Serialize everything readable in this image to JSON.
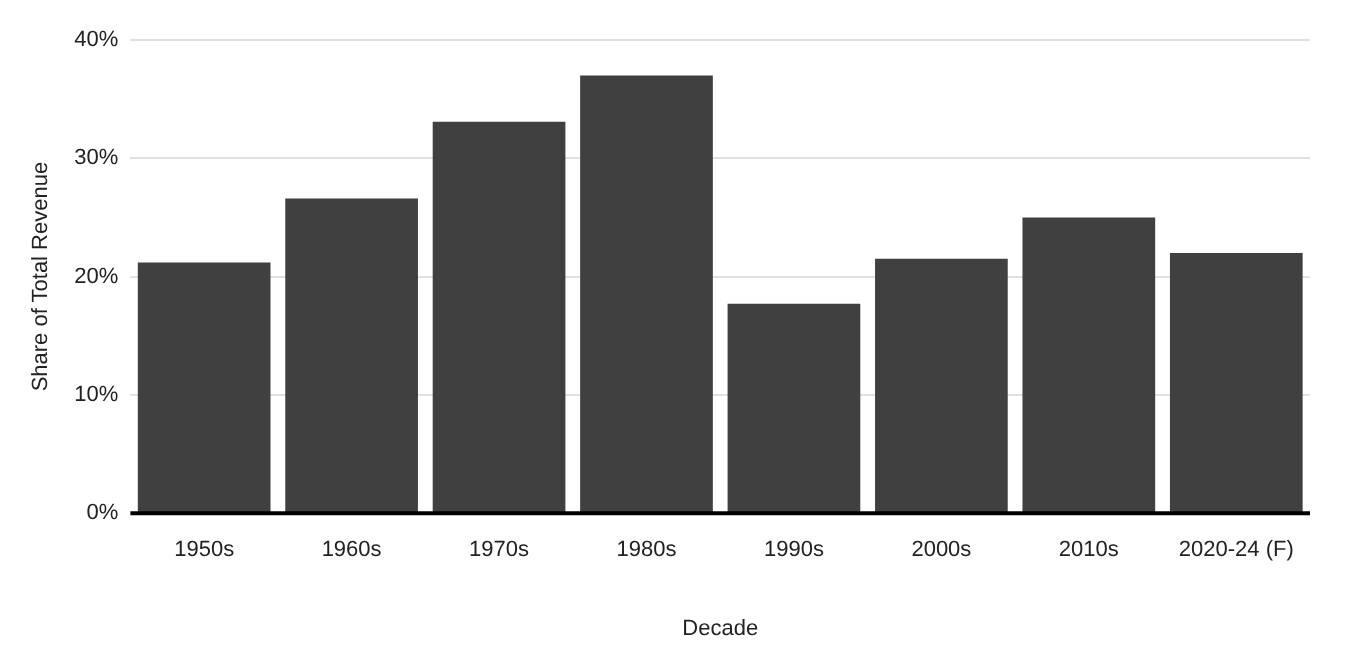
{
  "chart_data": {
    "type": "bar",
    "xlabel": "Decade",
    "ylabel": "Share of Total Revenue",
    "categories": [
      "1950s",
      "1960s",
      "1970s",
      "1980s",
      "1990s",
      "2000s",
      "2010s",
      "2020-24 (F)"
    ],
    "values": [
      21.2,
      26.6,
      33.1,
      37.0,
      17.7,
      21.5,
      25.0,
      22.0
    ],
    "color": "#404040",
    "ylim": [
      0,
      40
    ],
    "yticks": [
      {
        "value": 0,
        "label": "0%"
      },
      {
        "value": 10,
        "label": "10%"
      },
      {
        "value": 20,
        "label": "20%"
      },
      {
        "value": 30,
        "label": "30%"
      },
      {
        "value": 40,
        "label": "40%"
      }
    ],
    "grid": "y",
    "legend": false
  }
}
